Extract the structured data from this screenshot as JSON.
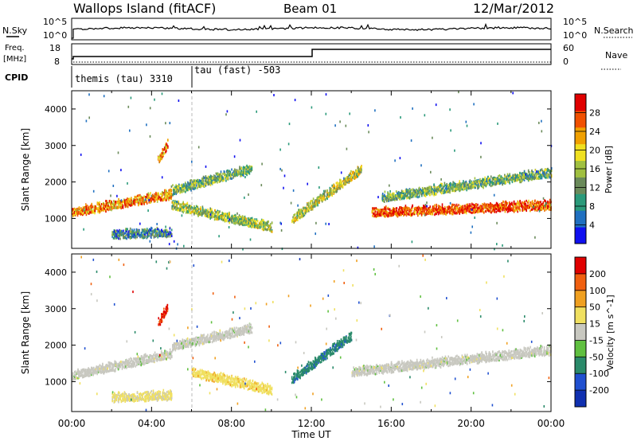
{
  "header": {
    "site": "Wallops Island (fitACF)",
    "beam": "Beam 01",
    "date": "12/Mar/2012"
  },
  "panels": {
    "nsky": {
      "left_label": "N.Sky",
      "right_label": "N.Search",
      "left_ticks": [
        "10^5",
        "10^0"
      ],
      "right_ticks": [
        "10^5",
        "10^0"
      ]
    },
    "freq": {
      "left_label_1": "Freq.",
      "left_label_2": "[MHz]",
      "right_label": "Nave",
      "left_ticks": [
        "18",
        "8"
      ],
      "right_ticks": [
        "60",
        "0"
      ]
    },
    "cpid": {
      "label": "CPID",
      "segments": [
        {
          "text": "themis (tau) 3310",
          "start_hour": 0
        },
        {
          "text": "tau (fast) -503",
          "start_hour": 6
        }
      ]
    }
  },
  "chart_data": [
    {
      "type": "heatmap",
      "title": "",
      "quantity": "Power",
      "xlabel": "Time UT",
      "ylabel": "Slant Range [km]",
      "xlim_hours": [
        0,
        24
      ],
      "ylim_km": [
        180,
        4500
      ],
      "x_ticks": [
        "00:00",
        "04:00",
        "08:00",
        "12:00",
        "16:00",
        "20:00",
        "00:00"
      ],
      "y_ticks": [
        1000,
        2000,
        3000,
        4000
      ],
      "colorbar": {
        "label": "Power [dB]",
        "ticks": [
          "4",
          "8",
          "12",
          "16",
          "20",
          "24",
          "28"
        ],
        "range": [
          0,
          30
        ],
        "colors": [
          "#1010f0",
          "#2070c0",
          "#2a9a7a",
          "#6a8a5a",
          "#a0c040",
          "#f0e020",
          "#f0a000",
          "#f05000",
          "#e00000"
        ]
      },
      "features": [
        {
          "name": "main echo band",
          "t_start": 0,
          "t_end": 5,
          "range_start": 1100,
          "range_end": 1600,
          "power": 22
        },
        {
          "name": "upper branch",
          "t_start": 5,
          "t_end": 9,
          "range_start": 1700,
          "range_end": 2300,
          "power": 12
        },
        {
          "name": "descending band",
          "t_start": 5,
          "t_end": 10,
          "range_start": 1300,
          "range_end": 700,
          "power": 14
        },
        {
          "name": "patch 04:30",
          "t_start": 4.3,
          "t_end": 4.8,
          "range_start": 2500,
          "range_end": 3000,
          "power": 22
        },
        {
          "name": "afternoon band",
          "t_start": 15,
          "t_end": 24,
          "range_start": 1100,
          "range_end": 1300,
          "power": 26
        },
        {
          "name": "afternoon upper band",
          "t_start": 15.5,
          "t_end": 24,
          "range_start": 1500,
          "range_end": 2200,
          "power": 12
        },
        {
          "name": "noon scatter",
          "t_start": 11,
          "t_end": 14.5,
          "range_start": 900,
          "range_end": 2300,
          "power": 16
        },
        {
          "name": "near-range strip",
          "t_start": 2,
          "t_end": 5,
          "range_start": 500,
          "range_end": 560,
          "power": 8
        }
      ]
    },
    {
      "type": "heatmap",
      "title": "",
      "quantity": "Velocity",
      "xlabel": "Time UT",
      "ylabel": "Slant Range [km]",
      "xlim_hours": [
        0,
        24
      ],
      "ylim_km": [
        180,
        4500
      ],
      "x_ticks": [
        "00:00",
        "04:00",
        "08:00",
        "12:00",
        "16:00",
        "20:00",
        "00:00"
      ],
      "y_ticks": [
        1000,
        2000,
        3000,
        4000
      ],
      "colorbar": {
        "label": "Velocity [m s^-1]",
        "ticks": [
          "200",
          "100",
          "50",
          "15",
          "-15",
          "-50",
          "-100",
          "-200"
        ],
        "range": [
          -250,
          250
        ],
        "colors": [
          "#1030b0",
          "#2050d0",
          "#2a8a6a",
          "#60c040",
          "#c8c8c0",
          "#f0e060",
          "#f0a020",
          "#f06010",
          "#e00000"
        ]
      },
      "features": [
        {
          "name": "main echo band",
          "t_start": 0,
          "t_end": 5,
          "range_start": 1100,
          "range_end": 1700,
          "velocity": 0
        },
        {
          "name": "upper branch",
          "t_start": 5,
          "t_end": 9,
          "range_start": 1900,
          "range_end": 2400,
          "velocity": 0
        },
        {
          "name": "descending band",
          "t_start": 6,
          "t_end": 10,
          "range_start": 1200,
          "range_end": 700,
          "velocity": 60
        },
        {
          "name": "patch 04:30",
          "t_start": 4.3,
          "t_end": 4.8,
          "range_start": 2500,
          "range_end": 3000,
          "velocity": 200
        },
        {
          "name": "afternoon band",
          "t_start": 14,
          "t_end": 24,
          "range_start": 1200,
          "range_end": 1800,
          "velocity": 0
        },
        {
          "name": "noon scatter",
          "t_start": 11,
          "t_end": 14,
          "range_start": 1000,
          "range_end": 2200,
          "velocity": -120
        },
        {
          "name": "near-range strip",
          "t_start": 2,
          "t_end": 5,
          "range_start": 500,
          "range_end": 560,
          "velocity": 40
        }
      ]
    }
  ]
}
